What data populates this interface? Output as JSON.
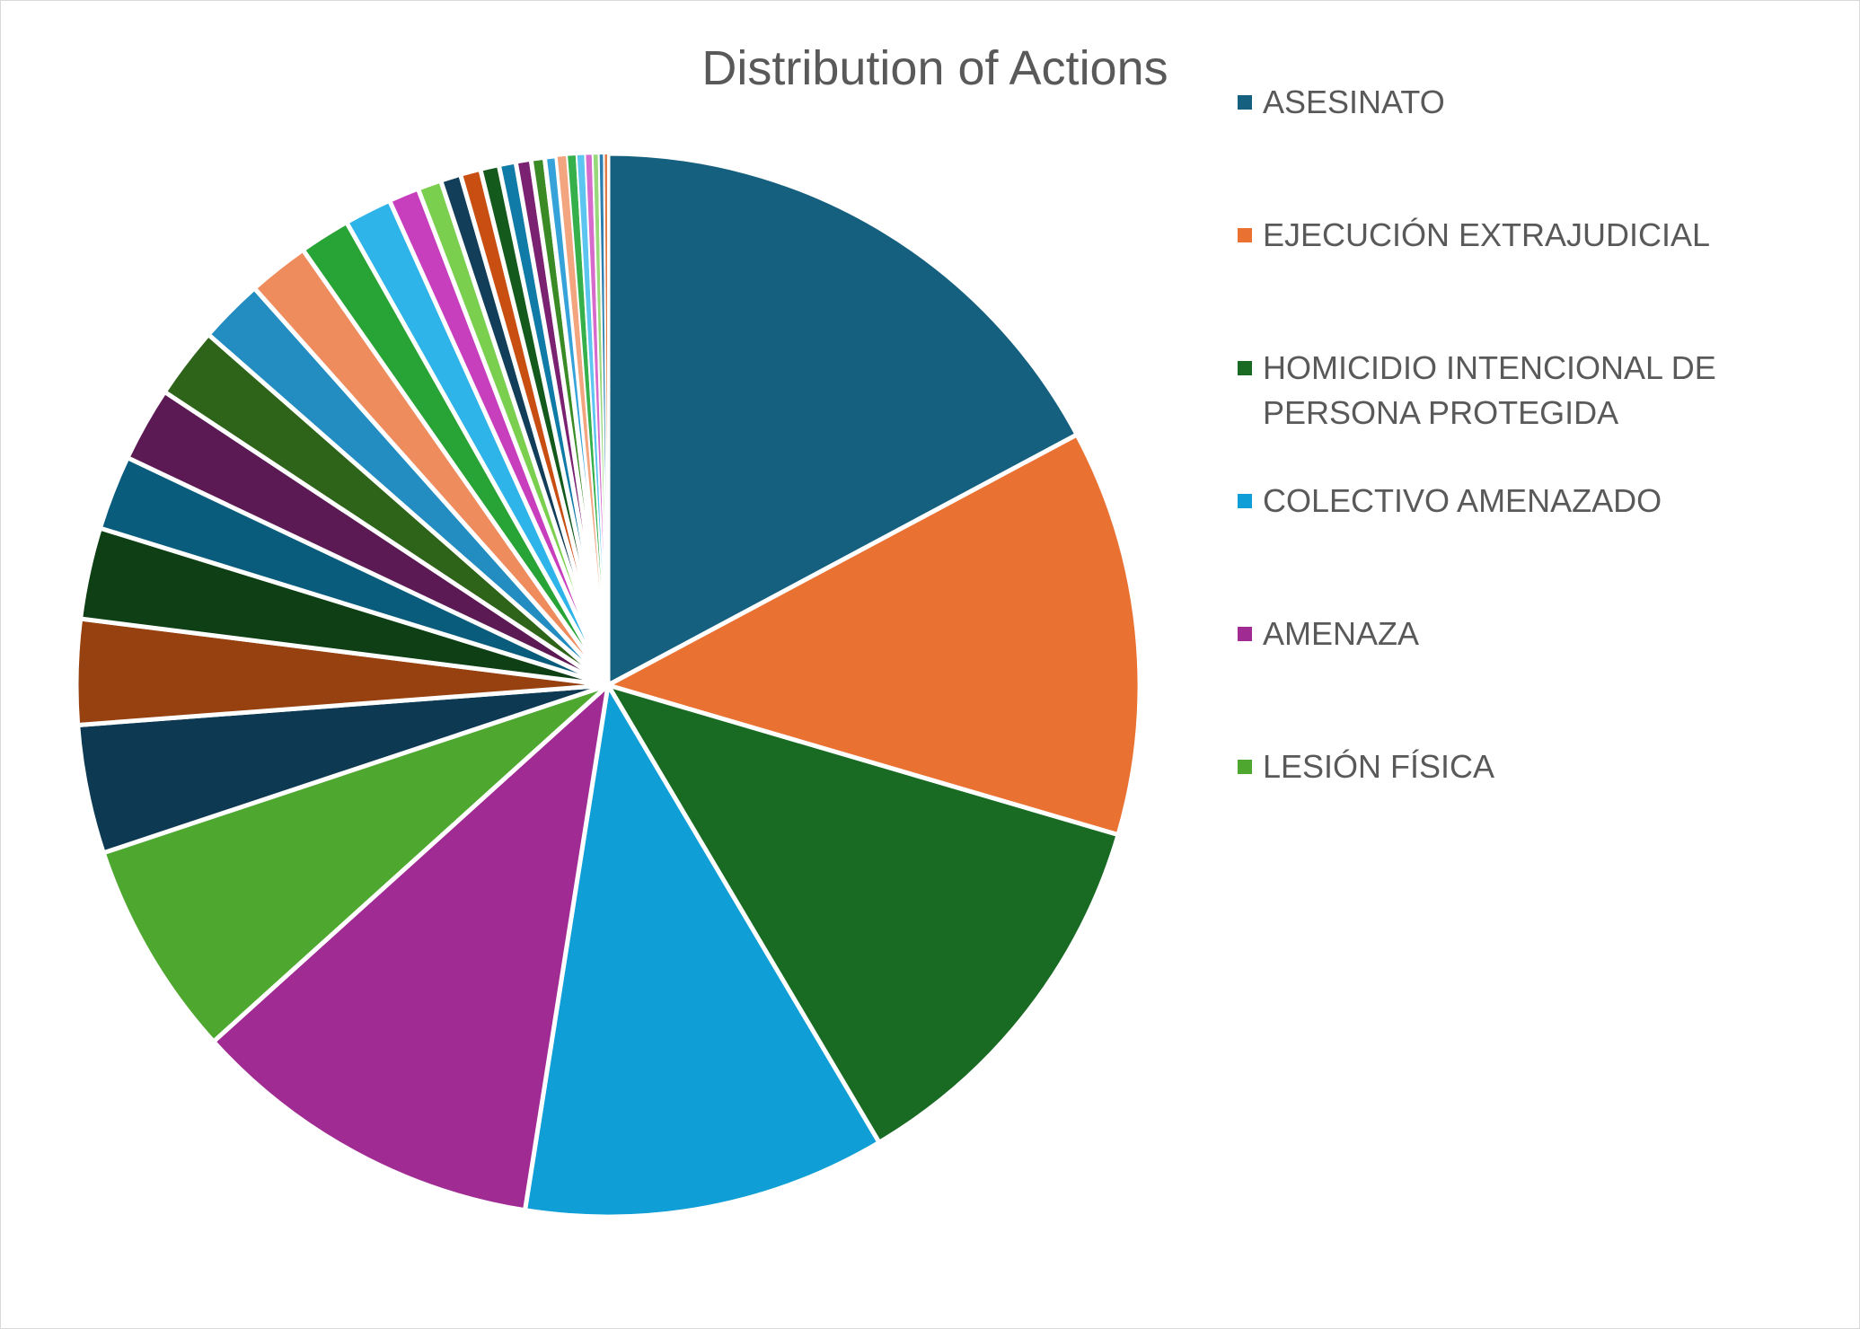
{
  "chart_data": {
    "type": "pie",
    "title": "Distribution of Actions",
    "legend_position": "right",
    "slices": [
      {
        "name": "ASESINATO",
        "value": 16.7,
        "color": "#16607f"
      },
      {
        "name": "EJECUCIÓN EXTRAJUDICIAL",
        "value": 12.0,
        "color": "#e97132"
      },
      {
        "name": "HOMICIDIO INTENCIONAL DE PERSONA PROTEGIDA",
        "value": 11.6,
        "color": "#196b24"
      },
      {
        "name": "COLECTIVO AMENAZADO",
        "value": 10.7,
        "color": "#0f9ed5"
      },
      {
        "name": "AMENAZA",
        "value": 10.5,
        "color": "#a02b93"
      },
      {
        "name": "LESIÓN FÍSICA",
        "value": 6.4,
        "color": "#4ea72e"
      },
      {
        "name": "",
        "value": 3.8,
        "color": "#0d3a52"
      },
      {
        "name": "",
        "value": 3.1,
        "color": "#96410f"
      },
      {
        "name": "",
        "value": 2.7,
        "color": "#0e3f15"
      },
      {
        "name": "",
        "value": 2.2,
        "color": "#0a5c7c"
      },
      {
        "name": "",
        "value": 2.2,
        "color": "#5c1a54"
      },
      {
        "name": "",
        "value": 2.1,
        "color": "#2e6419"
      },
      {
        "name": "",
        "value": 1.9,
        "color": "#238dc1"
      },
      {
        "name": "",
        "value": 1.8,
        "color": "#ee8c5e"
      },
      {
        "name": "",
        "value": 1.5,
        "color": "#28a335"
      },
      {
        "name": "",
        "value": 1.4,
        "color": "#2fb4ea"
      },
      {
        "name": "",
        "value": 0.9,
        "color": "#c83fbe"
      },
      {
        "name": "",
        "value": 0.7,
        "color": "#7bcf4f"
      },
      {
        "name": "",
        "value": 0.6,
        "color": "#123e5a"
      },
      {
        "name": "",
        "value": 0.6,
        "color": "#c94e12"
      },
      {
        "name": "",
        "value": 0.55,
        "color": "#145a1d"
      },
      {
        "name": "",
        "value": 0.5,
        "color": "#107ba6"
      },
      {
        "name": "",
        "value": 0.45,
        "color": "#7a2271"
      },
      {
        "name": "",
        "value": 0.4,
        "color": "#3a8a25"
      },
      {
        "name": "",
        "value": 0.35,
        "color": "#35a3d9"
      },
      {
        "name": "",
        "value": 0.3,
        "color": "#f2a57f"
      },
      {
        "name": "",
        "value": 0.28,
        "color": "#36b04a"
      },
      {
        "name": "",
        "value": 0.25,
        "color": "#5cc6f0"
      },
      {
        "name": "",
        "value": 0.22,
        "color": "#d66bcc"
      },
      {
        "name": "",
        "value": 0.18,
        "color": "#97d97a"
      },
      {
        "name": "",
        "value": 0.15,
        "color": "#2a7fb0"
      },
      {
        "name": "",
        "value": 0.12,
        "color": "#e07b45"
      }
    ]
  }
}
